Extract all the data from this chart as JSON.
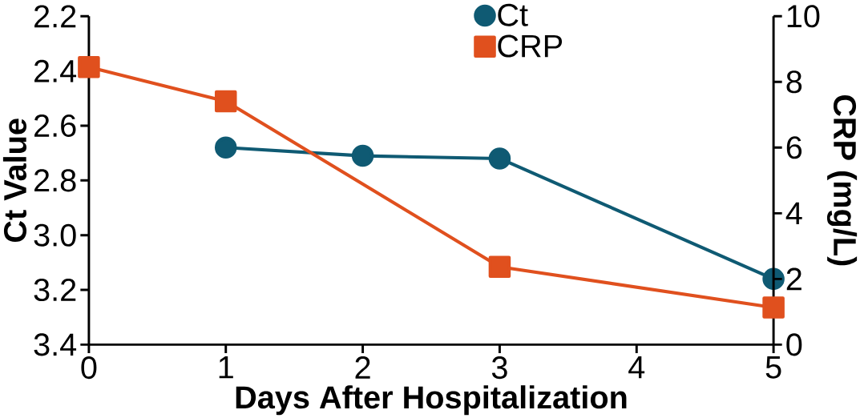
{
  "chart_data": {
    "type": "line",
    "xlabel": "Days After Hospitalization",
    "ylabel": "Ct Value",
    "y2label": "CRP (mg/L)",
    "xlim": [
      0,
      5
    ],
    "xticks": [
      0,
      1,
      2,
      3,
      4,
      5
    ],
    "ylim": [
      3.4,
      2.2
    ],
    "yticks": [
      2.2,
      2.4,
      2.6,
      2.8,
      {
        "value": 3,
        "label": "3.0"
      },
      3.2,
      3.4
    ],
    "y2lim": [
      0,
      10
    ],
    "y2ticks": [
      0,
      2,
      4,
      6,
      8,
      10
    ],
    "legend": "top right",
    "series": [
      {
        "name": "Ct",
        "color": "#0f5a73",
        "marker": "circle",
        "x": [
          1,
          2,
          3,
          5
        ],
        "values": [
          2.68,
          2.71,
          2.72,
          3.16
        ]
      },
      {
        "name": "CRP",
        "color": "#e0501e",
        "marker": "square",
        "axis": "y2",
        "x": [
          0,
          1,
          3,
          5
        ],
        "values": [
          8.45,
          7.41,
          2.37,
          1.13
        ]
      }
    ]
  }
}
